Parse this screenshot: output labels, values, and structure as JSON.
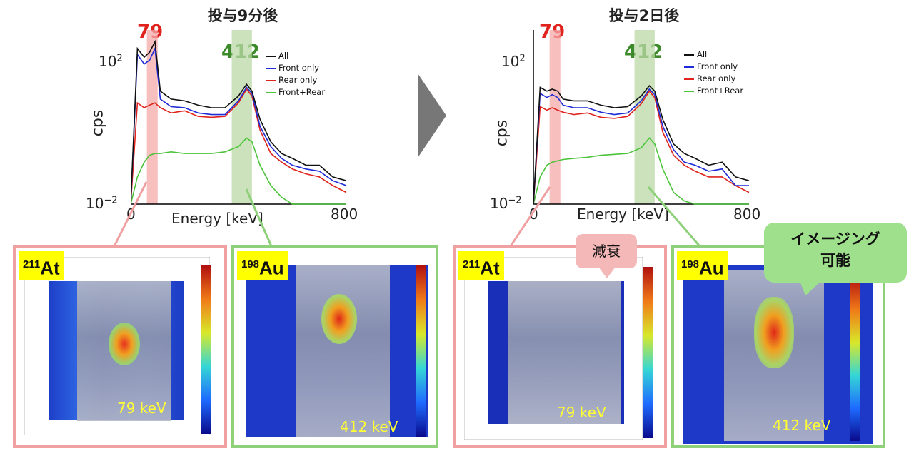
{
  "colors": {
    "all": "#111111",
    "front": "#1f2bd6",
    "rear": "#e0231c",
    "both": "#4cc43a",
    "peak79_band": "#f5a9a9",
    "peak412_band": "#b9d8a5",
    "at_frame": "#f0a0a0",
    "au_frame": "#8fd07a",
    "badge": "#ffff00",
    "callout_green": "#9ee08c"
  },
  "left_chart": {
    "title": "投与9分後",
    "peak_low_label": "79",
    "peak_high_label": "412"
  },
  "right_chart": {
    "title": "投与2日後",
    "peak_low_label": "79",
    "peak_high_label": "412"
  },
  "axes": {
    "ylabel": "cps",
    "xlabel": "Energy [keV]",
    "ytick_top_base": "10",
    "ytick_top_exp": "2",
    "ytick_bottom_base": "10",
    "ytick_bottom_exp": "−2",
    "xtick_min": "0",
    "xtick_max": "800"
  },
  "legend": [
    "All",
    "Front only",
    "Rear only",
    "Front+Rear"
  ],
  "chart_data": [
    {
      "type": "line",
      "title": "投与9分後",
      "xlabel": "Energy [keV]",
      "ylabel": "cps",
      "xlim": [
        0,
        800
      ],
      "ylim": [
        0.01,
        300
      ],
      "yscale": "log",
      "x": [
        0,
        25,
        50,
        70,
        90,
        110,
        150,
        200,
        250,
        300,
        350,
        400,
        430,
        450,
        480,
        520,
        560,
        600,
        650,
        700,
        750,
        800
      ],
      "series": [
        {
          "name": "All",
          "values": [
            0.01,
            100,
            60,
            80,
            150,
            8,
            5,
            4.5,
            3.5,
            3,
            3,
            6,
            12,
            8,
            1.5,
            0.4,
            0.2,
            0.15,
            0.1,
            0.1,
            0.05,
            0.04
          ]
        },
        {
          "name": "Front only",
          "values": [
            0.01,
            70,
            40,
            50,
            100,
            5,
            3.2,
            3,
            2.2,
            2,
            2,
            4.5,
            10,
            7,
            1,
            0.3,
            0.15,
            0.1,
            0.08,
            0.07,
            0.04,
            0.03
          ]
        },
        {
          "name": "Rear only",
          "values": [
            0.01,
            4,
            3,
            3.5,
            4,
            3,
            2.2,
            2.5,
            1.8,
            1.7,
            1.8,
            4,
            9,
            6,
            0.8,
            0.2,
            0.12,
            0.08,
            0.06,
            0.05,
            0.03,
            0.02
          ]
        },
        {
          "name": "Front+Rear",
          "values": [
            0.01,
            0.05,
            0.12,
            0.18,
            0.2,
            0.2,
            0.22,
            0.2,
            0.2,
            0.2,
            0.22,
            0.3,
            0.5,
            0.4,
            0.1,
            0.03,
            0.015,
            0.01,
            0.01,
            0.01,
            0.01,
            0.01
          ]
        }
      ],
      "bands": [
        {
          "label": "79",
          "x": [
            60,
            100
          ]
        },
        {
          "label": "412",
          "x": [
            375,
            450
          ]
        }
      ]
    },
    {
      "type": "line",
      "title": "投与2日後",
      "xlabel": "Energy [keV]",
      "ylabel": "cps",
      "xlim": [
        0,
        800
      ],
      "ylim": [
        0.01,
        300
      ],
      "yscale": "log",
      "x": [
        0,
        25,
        50,
        70,
        90,
        110,
        150,
        200,
        250,
        300,
        350,
        400,
        430,
        450,
        480,
        520,
        560,
        600,
        650,
        700,
        750,
        800
      ],
      "series": [
        {
          "name": "All",
          "values": [
            0.01,
            10,
            8,
            9,
            8,
            5,
            4.5,
            4.5,
            3.5,
            3,
            3.2,
            6,
            11,
            8,
            1.5,
            0.35,
            0.2,
            0.15,
            0.1,
            0.12,
            0.05,
            0.04
          ]
        },
        {
          "name": "Front only",
          "values": [
            0.01,
            7,
            5.5,
            6.5,
            5.5,
            3.5,
            3,
            3,
            2.3,
            2,
            2.2,
            4.5,
            9,
            6.5,
            1,
            0.25,
            0.12,
            0.1,
            0.07,
            0.08,
            0.03,
            0.03
          ]
        },
        {
          "name": "Rear only",
          "values": [
            0.01,
            3.2,
            2.6,
            3,
            2.6,
            2.3,
            2,
            2.2,
            1.7,
            1.6,
            1.8,
            3.8,
            8,
            5.5,
            0.7,
            0.18,
            0.1,
            0.07,
            0.05,
            0.05,
            0.03,
            0.02
          ]
        },
        {
          "name": "Front+Rear",
          "values": [
            0.01,
            0.05,
            0.1,
            0.12,
            0.13,
            0.14,
            0.15,
            0.16,
            0.18,
            0.19,
            0.2,
            0.28,
            0.5,
            0.35,
            0.08,
            0.02,
            0.012,
            0.01,
            0.01,
            0.01,
            0.01,
            0.01
          ]
        }
      ],
      "bands": [
        {
          "label": "79",
          "x": [
            60,
            100
          ]
        },
        {
          "label": "412",
          "x": [
            375,
            450
          ]
        }
      ]
    }
  ],
  "panels": [
    {
      "isotope_mass": "211",
      "isotope_symbol": "At",
      "energy": "79 keV"
    },
    {
      "isotope_mass": "198",
      "isotope_symbol": "Au",
      "energy": "412 keV"
    },
    {
      "isotope_mass": "211",
      "isotope_symbol": "At",
      "energy": "79 keV"
    },
    {
      "isotope_mass": "198",
      "isotope_symbol": "Au",
      "energy": "412 keV"
    }
  ],
  "callouts": {
    "decay": "減衰",
    "imaging_line1": "イメージング",
    "imaging_line2": "可能"
  }
}
